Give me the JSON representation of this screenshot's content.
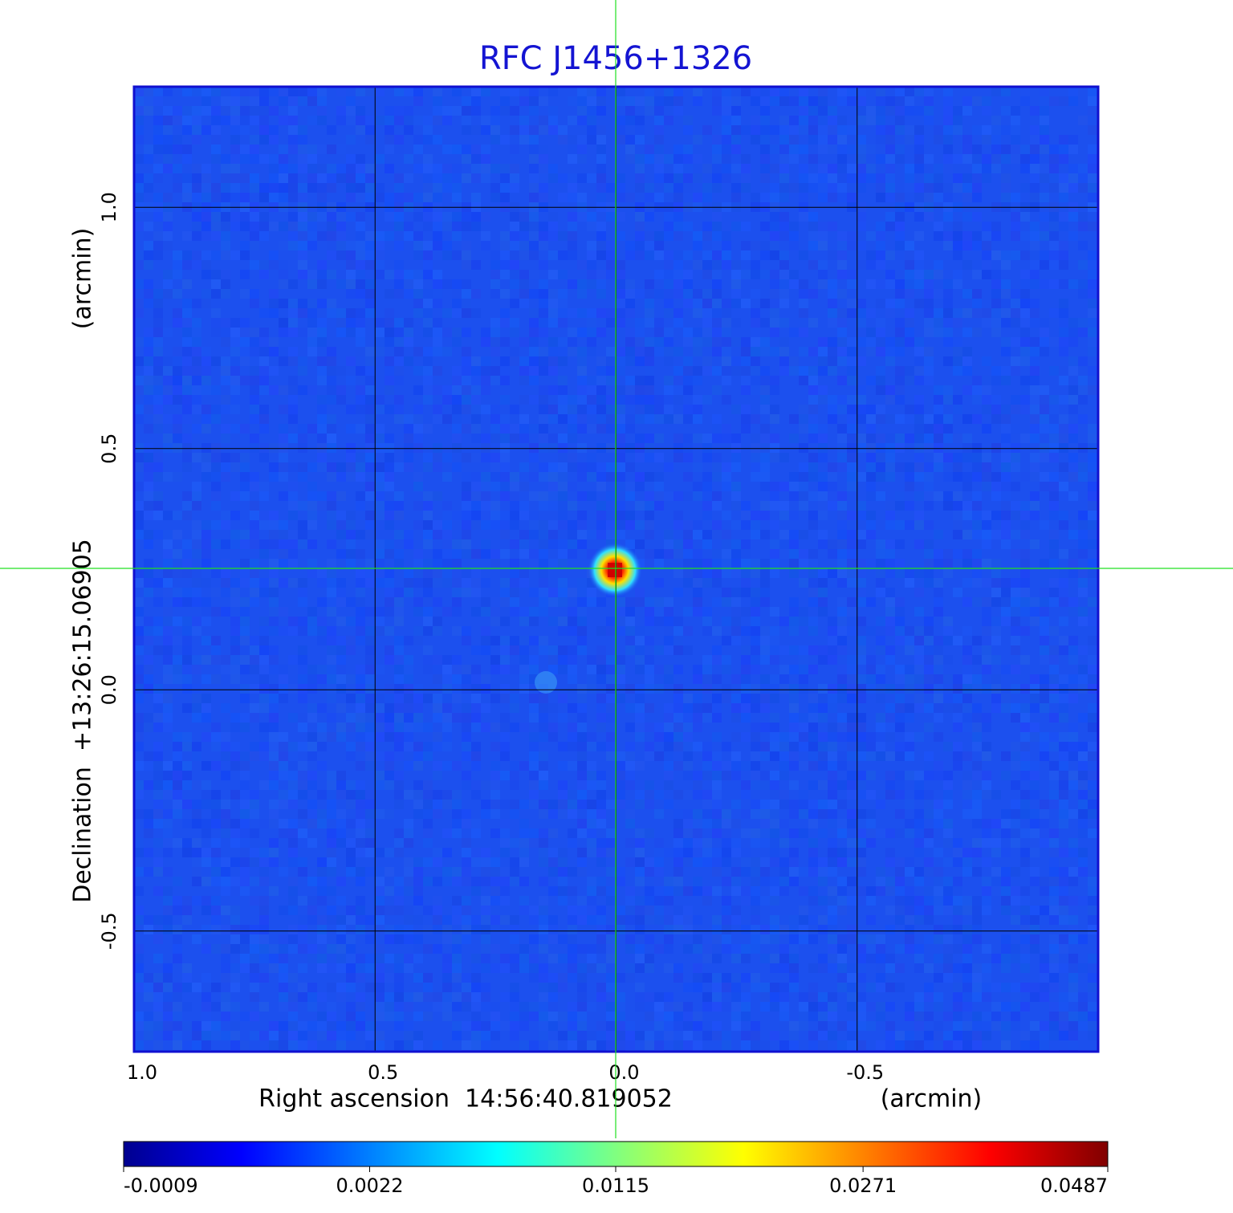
{
  "chart_data": {
    "type": "image",
    "title": "RFC J1456+1326",
    "x_label": "Right ascension  14:56:40.819052",
    "x_unit": "(arcmin)",
    "y_label": "Declination  +13:26:15.06905",
    "y_unit": "(arcmin)",
    "xlim": [
      1.0,
      -1.0
    ],
    "xticks": [
      {
        "value": 1.0,
        "label": "1.0"
      },
      {
        "value": 0.5,
        "label": "0.5"
      },
      {
        "value": 0,
        "label": "0.0"
      },
      {
        "value": -0.5,
        "label": "-0.5"
      }
    ],
    "ylim": [
      -0.75,
      1.25
    ],
    "yticks": [
      {
        "value": 1.0,
        "label": "1.0"
      },
      {
        "value": 0.5,
        "label": "0.5"
      },
      {
        "value": 0,
        "label": "0.0"
      },
      {
        "value": -0.5,
        "label": "-0.5"
      }
    ],
    "grid": true,
    "colorbar": {
      "lim": [
        -0.0009,
        0.0487
      ],
      "ticks": [
        -0.0009,
        0.0022,
        0.0115,
        0.0271,
        0.0487
      ],
      "scale": "sqrt",
      "colormap": "jet"
    }
  }
}
